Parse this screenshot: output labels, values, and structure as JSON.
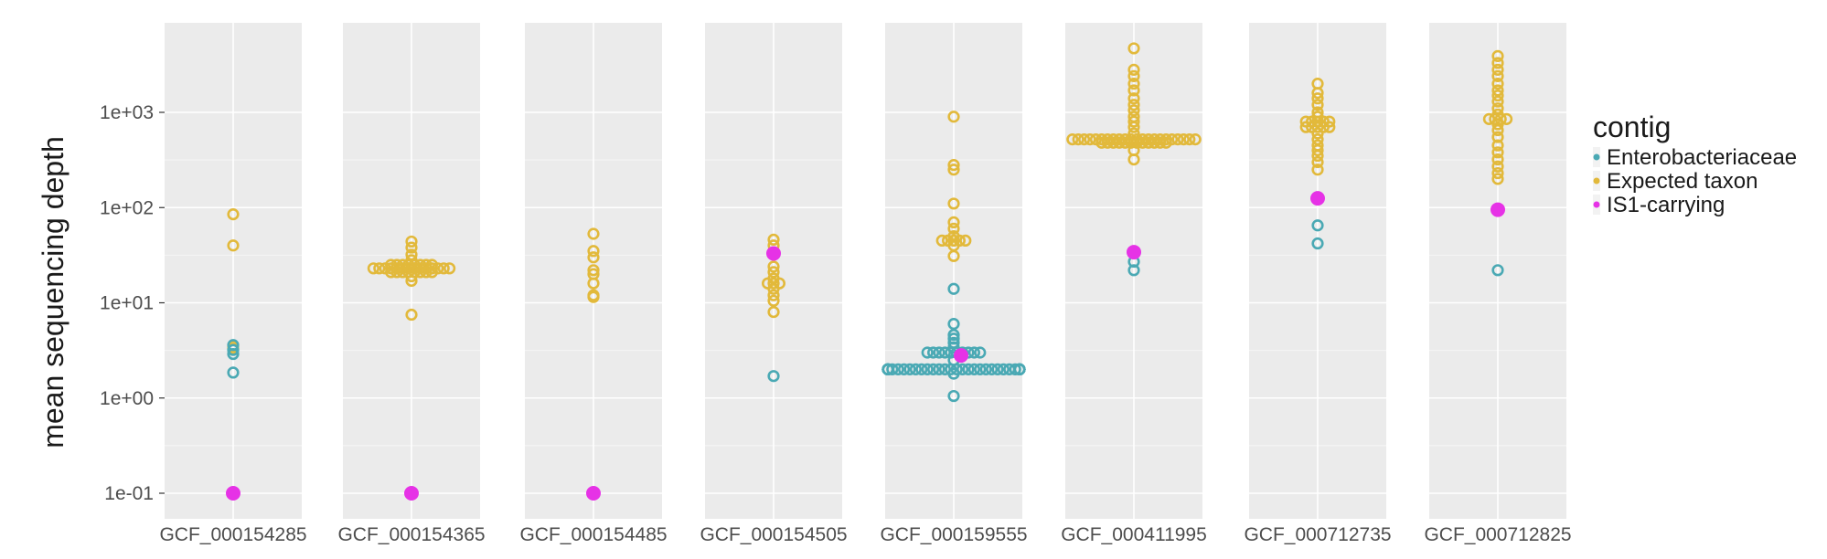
{
  "chart_data": {
    "type": "scatter",
    "subtype": "faceted-dotplot",
    "ylabel": "mean sequencing depth",
    "yscale": "log10",
    "ylim": [
      0.05,
      9000
    ],
    "yticks": [
      0.1,
      1,
      10,
      100,
      1000
    ],
    "ytick_labels": [
      "1e-01",
      "1e+00",
      "1e+01",
      "1e+02",
      "1e+03"
    ],
    "legend": {
      "title": "contig",
      "position": "right",
      "entries": [
        {
          "name": "Enterobacteriaceae",
          "color": "#4aa9b4"
        },
        {
          "name": "Expected taxon",
          "color": "#e2b93b"
        },
        {
          "name": "IS1-carrying",
          "color": "#e632e6"
        }
      ]
    },
    "panels": [
      {
        "label": "GCF_000154285",
        "points": [
          {
            "series": "Expected taxon",
            "y": 85
          },
          {
            "series": "Expected taxon",
            "y": 40
          },
          {
            "series": "Expected taxon",
            "y": 3.5
          },
          {
            "series": "Expected taxon",
            "y": 3.3
          },
          {
            "series": "Enterobacteriaceae",
            "y": 3.6
          },
          {
            "series": "Enterobacteriaceae",
            "y": 3.2
          },
          {
            "series": "Enterobacteriaceae",
            "y": 2.9
          },
          {
            "series": "Enterobacteriaceae",
            "y": 1.85
          },
          {
            "series": "IS1-carrying",
            "y": 0.1
          }
        ]
      },
      {
        "label": "GCF_000154365",
        "points": [
          {
            "series": "Expected taxon",
            "y": 44
          },
          {
            "series": "Expected taxon",
            "y": 38
          },
          {
            "series": "Expected taxon",
            "y": 32
          },
          {
            "series": "Expected taxon",
            "y": 28
          },
          {
            "series": "Expected taxon",
            "y": 25,
            "count": 8
          },
          {
            "series": "Expected taxon",
            "y": 23,
            "count": 14
          },
          {
            "series": "Expected taxon",
            "y": 21,
            "count": 8
          },
          {
            "series": "Expected taxon",
            "y": 19
          },
          {
            "series": "Expected taxon",
            "y": 17
          },
          {
            "series": "Expected taxon",
            "y": 7.5
          },
          {
            "series": "IS1-carrying",
            "y": 0.1
          }
        ]
      },
      {
        "label": "GCF_000154485",
        "points": [
          {
            "series": "Expected taxon",
            "y": 53
          },
          {
            "series": "Expected taxon",
            "y": 35
          },
          {
            "series": "Expected taxon",
            "y": 30
          },
          {
            "series": "Expected taxon",
            "y": 22
          },
          {
            "series": "Expected taxon",
            "y": 20
          },
          {
            "series": "Expected taxon",
            "y": 16
          },
          {
            "series": "Expected taxon",
            "y": 12
          },
          {
            "series": "Expected taxon",
            "y": 11.5
          },
          {
            "series": "IS1-carrying",
            "y": 0.1
          }
        ]
      },
      {
        "label": "GCF_000154505",
        "points": [
          {
            "series": "Expected taxon",
            "y": 46
          },
          {
            "series": "Expected taxon",
            "y": 40
          },
          {
            "series": "Expected taxon",
            "y": 24
          },
          {
            "series": "Expected taxon",
            "y": 21
          },
          {
            "series": "Expected taxon",
            "y": 18
          },
          {
            "series": "Expected taxon",
            "y": 16,
            "count": 3
          },
          {
            "series": "Expected taxon",
            "y": 14
          },
          {
            "series": "Expected taxon",
            "y": 12
          },
          {
            "series": "Expected taxon",
            "y": 10.5
          },
          {
            "series": "Expected taxon",
            "y": 8
          },
          {
            "series": "IS1-carrying",
            "y": 33
          },
          {
            "series": "Enterobacteriaceae",
            "y": 1.7
          }
        ]
      },
      {
        "label": "GCF_000159555",
        "points": [
          {
            "series": "Expected taxon",
            "y": 900
          },
          {
            "series": "Expected taxon",
            "y": 280
          },
          {
            "series": "Expected taxon",
            "y": 250
          },
          {
            "series": "Expected taxon",
            "y": 110
          },
          {
            "series": "Expected taxon",
            "y": 70
          },
          {
            "series": "Expected taxon",
            "y": 60
          },
          {
            "series": "Expected taxon",
            "y": 50
          },
          {
            "series": "Expected taxon",
            "y": 45,
            "count": 5
          },
          {
            "series": "Expected taxon",
            "y": 40
          },
          {
            "series": "Expected taxon",
            "y": 31
          },
          {
            "series": "Enterobacteriaceae",
            "y": 14
          },
          {
            "series": "Enterobacteriaceae",
            "y": 6
          },
          {
            "series": "Enterobacteriaceae",
            "y": 4.6
          },
          {
            "series": "Enterobacteriaceae",
            "y": 4.2
          },
          {
            "series": "Enterobacteriaceae",
            "y": 3.8
          },
          {
            "series": "Enterobacteriaceae",
            "y": 3.4
          },
          {
            "series": "Enterobacteriaceae",
            "y": 3.0,
            "count": 10
          },
          {
            "series": "Enterobacteriaceae",
            "y": 2.5
          },
          {
            "series": "Enterobacteriaceae",
            "y": 2.0,
            "count": 40
          },
          {
            "series": "Enterobacteriaceae",
            "y": 1.8
          },
          {
            "series": "Enterobacteriaceae",
            "y": 1.05
          },
          {
            "series": "IS1-carrying",
            "y": 2.8
          }
        ]
      },
      {
        "label": "GCF_000411995",
        "points": [
          {
            "series": "Expected taxon",
            "y": 4700
          },
          {
            "series": "Expected taxon",
            "y": 2800
          },
          {
            "series": "Expected taxon",
            "y": 2400
          },
          {
            "series": "Expected taxon",
            "y": 2000
          },
          {
            "series": "Expected taxon",
            "y": 1700
          },
          {
            "series": "Expected taxon",
            "y": 1400
          },
          {
            "series": "Expected taxon",
            "y": 1200
          },
          {
            "series": "Expected taxon",
            "y": 1050
          },
          {
            "series": "Expected taxon",
            "y": 900
          },
          {
            "series": "Expected taxon",
            "y": 800
          },
          {
            "series": "Expected taxon",
            "y": 700
          },
          {
            "series": "Expected taxon",
            "y": 600
          },
          {
            "series": "Expected taxon",
            "y": 520,
            "count": 22
          },
          {
            "series": "Expected taxon",
            "y": 480,
            "count": 12
          },
          {
            "series": "Expected taxon",
            "y": 400
          },
          {
            "series": "Expected taxon",
            "y": 320
          },
          {
            "series": "IS1-carrying",
            "y": 34
          },
          {
            "series": "Enterobacteriaceae",
            "y": 27
          },
          {
            "series": "Enterobacteriaceae",
            "y": 22
          }
        ]
      },
      {
        "label": "GCF_000712735",
        "points": [
          {
            "series": "Expected taxon",
            "y": 2000
          },
          {
            "series": "Expected taxon",
            "y": 1600
          },
          {
            "series": "Expected taxon",
            "y": 1400
          },
          {
            "series": "Expected taxon",
            "y": 1200
          },
          {
            "series": "Expected taxon",
            "y": 1000
          },
          {
            "series": "Expected taxon",
            "y": 900
          },
          {
            "series": "Expected taxon",
            "y": 800,
            "count": 5
          },
          {
            "series": "Expected taxon",
            "y": 700,
            "count": 5
          },
          {
            "series": "Expected taxon",
            "y": 600
          },
          {
            "series": "Expected taxon",
            "y": 520
          },
          {
            "series": "Expected taxon",
            "y": 450
          },
          {
            "series": "Expected taxon",
            "y": 400
          },
          {
            "series": "Expected taxon",
            "y": 350
          },
          {
            "series": "Expected taxon",
            "y": 300
          },
          {
            "series": "Expected taxon",
            "y": 250
          },
          {
            "series": "IS1-carrying",
            "y": 125
          },
          {
            "series": "Enterobacteriaceae",
            "y": 65
          },
          {
            "series": "Enterobacteriaceae",
            "y": 42
          }
        ]
      },
      {
        "label": "GCF_000712825",
        "points": [
          {
            "series": "Expected taxon",
            "y": 3900
          },
          {
            "series": "Expected taxon",
            "y": 3300
          },
          {
            "series": "Expected taxon",
            "y": 2800
          },
          {
            "series": "Expected taxon",
            "y": 2400
          },
          {
            "series": "Expected taxon",
            "y": 2000
          },
          {
            "series": "Expected taxon",
            "y": 1700
          },
          {
            "series": "Expected taxon",
            "y": 1500
          },
          {
            "series": "Expected taxon",
            "y": 1300
          },
          {
            "series": "Expected taxon",
            "y": 1100
          },
          {
            "series": "Expected taxon",
            "y": 950
          },
          {
            "series": "Expected taxon",
            "y": 850,
            "count": 4
          },
          {
            "series": "Expected taxon",
            "y": 750
          },
          {
            "series": "Expected taxon",
            "y": 650
          },
          {
            "series": "Expected taxon",
            "y": 550
          },
          {
            "series": "Expected taxon",
            "y": 450
          },
          {
            "series": "Expected taxon",
            "y": 380
          },
          {
            "series": "Expected taxon",
            "y": 320
          },
          {
            "series": "Expected taxon",
            "y": 270
          },
          {
            "series": "Expected taxon",
            "y": 230
          },
          {
            "series": "Expected taxon",
            "y": 200
          },
          {
            "series": "IS1-carrying",
            "y": 95
          },
          {
            "series": "Enterobacteriaceae",
            "y": 22
          }
        ]
      }
    ]
  }
}
